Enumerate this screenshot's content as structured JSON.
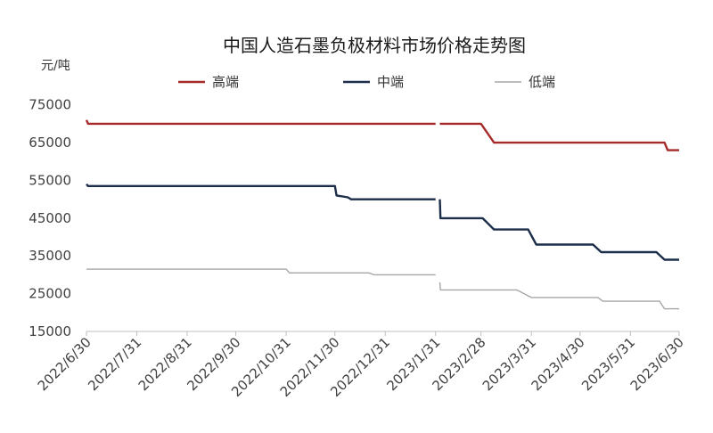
{
  "chart_data": {
    "type": "line",
    "title": "中国人造石墨负极材料市场价格走势图",
    "ylabel": "元/吨",
    "ylim": [
      15000,
      78000
    ],
    "yticks": [
      75000,
      65000,
      55000,
      45000,
      35000,
      25000,
      15000
    ],
    "x_ticks": [
      "2022/6/30",
      "2022/7/31",
      "2022/8/31",
      "2022/9/30",
      "2022/10/31",
      "2022/11/30",
      "2022/12/31",
      "2023/1/31",
      "2023/2/28",
      "2023/3/31",
      "2023/4/30",
      "2023/5/31",
      "2023/6/30"
    ],
    "legend_position": "top",
    "grid": false,
    "series": [
      {
        "name": "高端",
        "color": "#a52a2a",
        "points": [
          [
            "2022-06-30",
            71000
          ],
          [
            "2022-07-01",
            70000
          ],
          [
            "2023-01-31",
            70000
          ],
          [
            "2023-02-01",
            70000
          ],
          [
            "2023-02-28",
            70000
          ],
          [
            "2023-03-08",
            65000
          ],
          [
            "2023-06-21",
            65000
          ],
          [
            "2023-06-23",
            63000
          ],
          [
            "2023-06-30",
            63000
          ]
        ]
      },
      {
        "name": "中端",
        "color": "#1c2e4a",
        "points": [
          [
            "2022-06-30",
            54000
          ],
          [
            "2022-07-01",
            53500
          ],
          [
            "2022-11-30",
            53500
          ],
          [
            "2022-12-01",
            51000
          ],
          [
            "2022-12-08",
            50500
          ],
          [
            "2022-12-10",
            50000
          ],
          [
            "2023-01-31",
            50000
          ],
          [
            "2023-02-01",
            50000
          ],
          [
            "2023-02-03",
            45000
          ],
          [
            "2023-03-01",
            45000
          ],
          [
            "2023-03-08",
            42000
          ],
          [
            "2023-03-29",
            42000
          ],
          [
            "2023-04-03",
            38000
          ],
          [
            "2023-05-08",
            38000
          ],
          [
            "2023-05-13",
            36000
          ],
          [
            "2023-06-16",
            36000
          ],
          [
            "2023-06-21",
            34000
          ],
          [
            "2023-06-30",
            34000
          ]
        ]
      },
      {
        "name": "低端",
        "color": "#a6a6a6",
        "points": [
          [
            "2022-06-30",
            31500
          ],
          [
            "2022-10-31",
            31500
          ],
          [
            "2022-11-02",
            30500
          ],
          [
            "2022-12-21",
            30500
          ],
          [
            "2022-12-24",
            30000
          ],
          [
            "2023-01-31",
            30000
          ],
          [
            "2023-02-01",
            28000
          ],
          [
            "2023-02-03",
            26000
          ],
          [
            "2023-03-22",
            26000
          ],
          [
            "2023-03-31",
            24000
          ],
          [
            "2023-05-11",
            24000
          ],
          [
            "2023-05-14",
            23000
          ],
          [
            "2023-06-18",
            23000
          ],
          [
            "2023-06-21",
            21000
          ],
          [
            "2023-06-30",
            21000
          ]
        ]
      }
    ]
  }
}
